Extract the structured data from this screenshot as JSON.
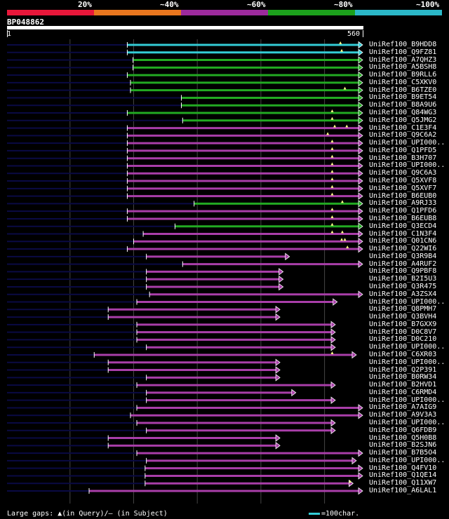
{
  "legend": [
    {
      "label": "20%",
      "color": "#e8173a"
    },
    {
      "label": "~40%",
      "color": "#e8761e"
    },
    {
      "label": "~60%",
      "color": "#9c2a9c"
    },
    {
      "label": "~80%",
      "color": "#1ca01c"
    },
    {
      "label": "~100%",
      "color": "#2bb8c8"
    }
  ],
  "query": {
    "name": "BP048862",
    "start": "1",
    "end": "560",
    "length": 560
  },
  "colors": {
    "cyan": "#33ccd6",
    "green": "#22aa22",
    "magenta": "#a93ea9",
    "navy": "#0a0a44",
    "grid": "#444444"
  },
  "hits": [
    {
      "id": "UniRef100_B9HDD8",
      "color": "cyan",
      "s": 190,
      "e": 560,
      "marks": [
        525
      ],
      "ext": 0
    },
    {
      "id": "UniRef100_Q9FZ81",
      "color": "cyan",
      "s": 190,
      "e": 560,
      "marks": [
        527
      ],
      "ext": 0
    },
    {
      "id": "UniRef100_A7QHZ3",
      "color": "green",
      "s": 199,
      "e": 560,
      "marks": [],
      "ext": 0
    },
    {
      "id": "UniRef100_A5BSH8",
      "color": "green",
      "s": 199,
      "e": 560,
      "marks": [],
      "ext": 0
    },
    {
      "id": "UniRef100_B9RLL6",
      "color": "green",
      "s": 190,
      "e": 560,
      "marks": [],
      "ext": 0
    },
    {
      "id": "UniRef100_C5XKV0",
      "color": "green",
      "s": 195,
      "e": 560,
      "marks": [],
      "ext": 0
    },
    {
      "id": "UniRef100_B6TZE0",
      "color": "green",
      "s": 195,
      "e": 560,
      "marks": [
        532
      ],
      "ext": 0
    },
    {
      "id": "UniRef100_B9ET54",
      "color": "green",
      "s": 275,
      "e": 560,
      "marks": [],
      "ext": 0
    },
    {
      "id": "UniRef100_B8A9U6",
      "color": "green",
      "s": 275,
      "e": 560,
      "marks": [],
      "ext": 0
    },
    {
      "id": "UniRef100_Q84WG3",
      "color": "green",
      "s": 190,
      "e": 560,
      "marks": [
        512
      ],
      "ext": 0
    },
    {
      "id": "UniRef100_Q5JMG2",
      "color": "green",
      "s": 277,
      "e": 560,
      "marks": [
        512
      ],
      "ext": 0
    },
    {
      "id": "UniRef100_C1E3F4",
      "color": "magenta",
      "s": 190,
      "e": 560,
      "marks": [
        516,
        535
      ],
      "ext": 0
    },
    {
      "id": "UniRef100_Q9C6A2",
      "color": "magenta",
      "s": 190,
      "e": 560,
      "marks": [
        505
      ],
      "ext": 0
    },
    {
      "id": "UniRef100_UPI000..",
      "color": "magenta",
      "s": 190,
      "e": 560,
      "marks": [
        512
      ],
      "ext": 0
    },
    {
      "id": "UniRef100_Q1PFD5",
      "color": "magenta",
      "s": 190,
      "e": 560,
      "marks": [
        512
      ],
      "ext": 0
    },
    {
      "id": "UniRef100_B3H707",
      "color": "magenta",
      "s": 190,
      "e": 560,
      "marks": [
        512
      ],
      "ext": 0
    },
    {
      "id": "UniRef100_UPI000..",
      "color": "magenta",
      "s": 190,
      "e": 560,
      "marks": [
        512
      ],
      "ext": 0
    },
    {
      "id": "UniRef100_Q9C6A3",
      "color": "magenta",
      "s": 190,
      "e": 560,
      "marks": [
        512
      ],
      "ext": 0
    },
    {
      "id": "UniRef100_Q5XVF8",
      "color": "magenta",
      "s": 190,
      "e": 560,
      "marks": [
        512
      ],
      "ext": 0
    },
    {
      "id": "UniRef100_Q5XVF7",
      "color": "magenta",
      "s": 190,
      "e": 560,
      "marks": [
        512
      ],
      "ext": 0
    },
    {
      "id": "UniRef100_B6EUB0",
      "color": "magenta",
      "s": 190,
      "e": 560,
      "marks": [
        512
      ],
      "ext": 0
    },
    {
      "id": "UniRef100_A9RJ33",
      "color": "green",
      "s": 295,
      "e": 560,
      "marks": [
        528
      ],
      "ext": 0
    },
    {
      "id": "UniRef100_Q1PFD6",
      "color": "magenta",
      "s": 190,
      "e": 560,
      "marks": [
        512
      ],
      "ext": 0
    },
    {
      "id": "UniRef100_B6EUB8",
      "color": "magenta",
      "s": 190,
      "e": 560,
      "marks": [
        512
      ],
      "ext": 0
    },
    {
      "id": "UniRef100_Q3ECD4",
      "color": "green",
      "s": 265,
      "e": 560,
      "marks": [
        512
      ],
      "ext": 0
    },
    {
      "id": "UniRef100_C1N3F4",
      "color": "magenta",
      "s": 215,
      "e": 560,
      "marks": [
        512,
        528
      ],
      "ext": 0
    },
    {
      "id": "UniRef100_Q01CN6",
      "color": "magenta",
      "s": 200,
      "e": 560,
      "marks": [
        527,
        532
      ],
      "ext": 0
    },
    {
      "id": "UniRef100_Q22WI6",
      "color": "magenta",
      "s": 190,
      "e": 560,
      "marks": [
        536
      ],
      "ext": 0
    },
    {
      "id": "UniRef100_Q3R9B4",
      "color": "magenta",
      "s": 220,
      "e": 445,
      "marks": [],
      "ext": 0
    },
    {
      "id": "UniRef100_A4RUF2",
      "color": "magenta",
      "s": 277,
      "e": 560,
      "marks": [],
      "ext": 0
    },
    {
      "id": "UniRef100_Q9PBF8",
      "color": "magenta",
      "s": 220,
      "e": 435,
      "marks": [],
      "ext": 0
    },
    {
      "id": "UniRef100_B2I5U3",
      "color": "magenta",
      "s": 220,
      "e": 435,
      "marks": [],
      "ext": 0
    },
    {
      "id": "UniRef100_Q3R475",
      "color": "magenta",
      "s": 220,
      "e": 435,
      "marks": [],
      "ext": 0
    },
    {
      "id": "UniRef100_A3ZSX4",
      "color": "magenta",
      "s": 225,
      "e": 560,
      "marks": [],
      "ext": 0
    },
    {
      "id": "UniRef100_UPI000..",
      "color": "magenta",
      "s": 205,
      "e": 520,
      "marks": [],
      "ext": 0
    },
    {
      "id": "UniRef100_Q8PMH7",
      "color": "magenta",
      "s": 160,
      "e": 430,
      "marks": [],
      "ext": 0
    },
    {
      "id": "UniRef100_Q3BVH4",
      "color": "magenta",
      "s": 160,
      "e": 430,
      "marks": [],
      "ext": 0
    },
    {
      "id": "UniRef100_B7GXX9",
      "color": "magenta",
      "s": 205,
      "e": 517,
      "marks": [],
      "ext": 0
    },
    {
      "id": "UniRef100_D0C8V7",
      "color": "magenta",
      "s": 205,
      "e": 517,
      "marks": [],
      "ext": 0
    },
    {
      "id": "UniRef100_D0C210",
      "color": "magenta",
      "s": 205,
      "e": 517,
      "marks": [],
      "ext": 0
    },
    {
      "id": "UniRef100_UPI000..",
      "color": "magenta",
      "s": 220,
      "e": 517,
      "marks": [],
      "ext": 0
    },
    {
      "id": "UniRef100_C6XR03",
      "color": "magenta",
      "s": 138,
      "e": 550,
      "marks": [
        512
      ],
      "ext": 0
    },
    {
      "id": "UniRef100_UPI000..",
      "color": "magenta",
      "s": 160,
      "e": 430,
      "marks": [],
      "ext": 0
    },
    {
      "id": "UniRef100_Q2P391",
      "color": "magenta",
      "s": 160,
      "e": 430,
      "marks": [],
      "ext": 0
    },
    {
      "id": "UniRef100_B0RW34",
      "color": "magenta",
      "s": 220,
      "e": 430,
      "marks": [],
      "ext": 0
    },
    {
      "id": "UniRef100_B2HVD1",
      "color": "magenta",
      "s": 205,
      "e": 517,
      "marks": [],
      "ext": 0
    },
    {
      "id": "UniRef100_C6RMD4",
      "color": "magenta",
      "s": 220,
      "e": 455,
      "marks": [],
      "ext": 0
    },
    {
      "id": "UniRef100_UPI000..",
      "color": "magenta",
      "s": 220,
      "e": 517,
      "marks": [],
      "ext": 0
    },
    {
      "id": "UniRef100_A7AIG9",
      "color": "magenta",
      "s": 205,
      "e": 560,
      "marks": [],
      "ext": 0
    },
    {
      "id": "UniRef100_A9V3A3",
      "color": "magenta",
      "s": 195,
      "e": 560,
      "marks": [],
      "ext": 0
    },
    {
      "id": "UniRef100_UPI000..",
      "color": "magenta",
      "s": 205,
      "e": 517,
      "marks": [],
      "ext": 0
    },
    {
      "id": "UniRef100_Q6FDB9",
      "color": "magenta",
      "s": 220,
      "e": 517,
      "marks": [],
      "ext": 0
    },
    {
      "id": "UniRef100_Q5H0B8",
      "color": "magenta",
      "s": 160,
      "e": 430,
      "marks": [],
      "ext": 0
    },
    {
      "id": "UniRef100_B2SJN6",
      "color": "magenta",
      "s": 160,
      "e": 430,
      "marks": [],
      "ext": 0
    },
    {
      "id": "UniRef100_B7B5O4",
      "color": "magenta",
      "s": 205,
      "e": 560,
      "marks": [],
      "ext": 0
    },
    {
      "id": "UniRef100_UPI000..",
      "color": "magenta",
      "s": 220,
      "e": 550,
      "marks": [],
      "ext": 0
    },
    {
      "id": "UniRef100_Q4FV10",
      "color": "magenta",
      "s": 218,
      "e": 560,
      "marks": [],
      "ext": 0
    },
    {
      "id": "UniRef100_Q1QE14",
      "color": "magenta",
      "s": 218,
      "e": 560,
      "marks": [],
      "ext": 0
    },
    {
      "id": "UniRef100_Q11XW7",
      "color": "magenta",
      "s": 218,
      "e": 545,
      "marks": [
        540
      ],
      "ext": 0
    },
    {
      "id": "UniRef100_A6LAL1",
      "color": "magenta",
      "s": 130,
      "e": 560,
      "marks": [],
      "ext": 0
    }
  ],
  "footer": {
    "gaps_text": "Large gaps: ▲(in Query)/– (in Subject)",
    "scale_text": "=100char."
  }
}
